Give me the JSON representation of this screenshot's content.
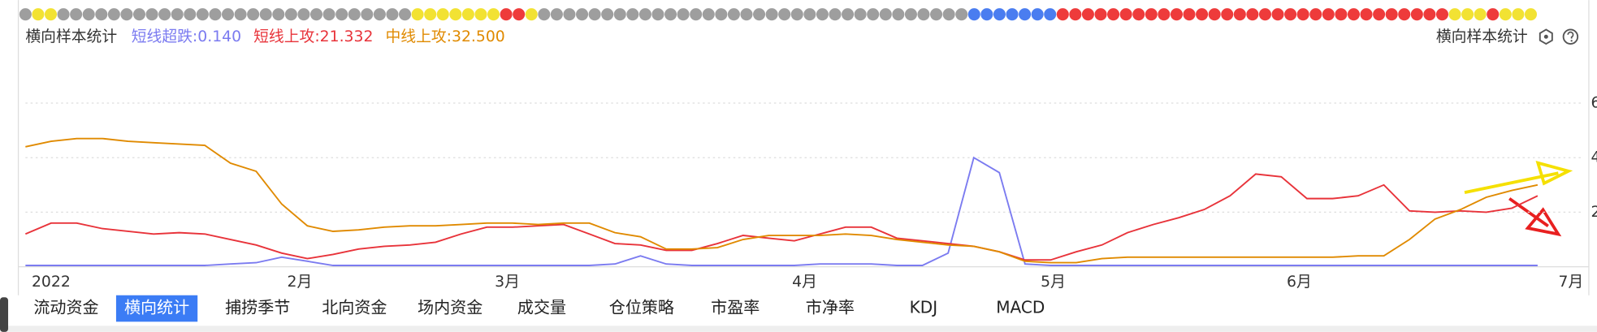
{
  "chart_data": {
    "type": "line",
    "title": "横向样本统计",
    "side_title": "横向样本统计",
    "status_dots": [
      [
        "#9e9e9e",
        1
      ],
      [
        "#f2e233",
        2
      ],
      [
        "#9e9e9e",
        28
      ],
      [
        "#f2e233",
        7
      ],
      [
        "#ee3b3b",
        2
      ],
      [
        "#f2e233",
        1
      ],
      [
        "#9e9e9e",
        34
      ],
      [
        "#4a7df0",
        7
      ],
      [
        "#ee3b3b",
        31
      ],
      [
        "#f2e233",
        3
      ],
      [
        "#ee3b3b",
        1
      ],
      [
        "#f2e233",
        3
      ]
    ],
    "series": [
      {
        "label": "短线超跌:0.140",
        "color": "#7b7bf0",
        "values": [
          0.05,
          0.05,
          0.05,
          0.05,
          0.05,
          0.05,
          0.05,
          0.05,
          0.1,
          0.15,
          0.35,
          0.2,
          0.05,
          0.05,
          0.05,
          0.05,
          0.05,
          0.05,
          0.05,
          0.05,
          0.05,
          0.05,
          0.05,
          0.1,
          0.4,
          0.1,
          0.05,
          0.05,
          0.05,
          0.05,
          0.05,
          0.1,
          0.1,
          0.1,
          0.05,
          0.05,
          0.5,
          4.0,
          3.45,
          0.1,
          0.05,
          0.05,
          0.05,
          0.05,
          0.05,
          0.05,
          0.05,
          0.05,
          0.05,
          0.05,
          0.05,
          0.05,
          0.05,
          0.05,
          0.05,
          0.05,
          0.05,
          0.05,
          0.05,
          0.05
        ]
      },
      {
        "label": "短线上攻:21.332",
        "color": "#e8333a",
        "values": [
          1.2,
          1.6,
          1.6,
          1.4,
          1.3,
          1.2,
          1.25,
          1.2,
          1.0,
          0.8,
          0.5,
          0.3,
          0.45,
          0.65,
          0.75,
          0.8,
          0.9,
          1.2,
          1.45,
          1.45,
          1.5,
          1.55,
          1.2,
          0.85,
          0.8,
          0.6,
          0.6,
          0.85,
          1.15,
          1.05,
          0.95,
          1.2,
          1.45,
          1.45,
          1.05,
          0.95,
          0.85,
          0.75,
          0.55,
          0.25,
          0.25,
          0.55,
          0.8,
          1.25,
          1.55,
          1.8,
          2.1,
          2.6,
          3.4,
          3.3,
          2.5,
          2.5,
          2.6,
          3.0,
          2.05,
          2.0,
          2.05,
          2.0,
          2.15,
          2.6
        ]
      },
      {
        "label": "中线上攻:32.500",
        "color": "#e08a00",
        "values": [
          4.4,
          4.6,
          4.7,
          4.7,
          4.6,
          4.55,
          4.5,
          4.45,
          3.8,
          3.5,
          2.3,
          1.5,
          1.3,
          1.35,
          1.45,
          1.5,
          1.5,
          1.55,
          1.6,
          1.6,
          1.55,
          1.6,
          1.6,
          1.25,
          1.1,
          0.65,
          0.65,
          0.7,
          1.0,
          1.15,
          1.15,
          1.15,
          1.2,
          1.15,
          1.0,
          0.9,
          0.8,
          0.75,
          0.55,
          0.2,
          0.15,
          0.15,
          0.3,
          0.35,
          0.35,
          0.35,
          0.35,
          0.35,
          0.35,
          0.35,
          0.35,
          0.35,
          0.4,
          0.4,
          1.0,
          1.75,
          2.1,
          2.55,
          2.8,
          3.0
        ]
      }
    ],
    "xlim": [
      0,
      61
    ],
    "xticks": [
      {
        "value": 1.0,
        "label": "2022"
      },
      {
        "value": 10.7,
        "label": "2月"
      },
      {
        "value": 18.8,
        "label": "3月"
      },
      {
        "value": 30.4,
        "label": "4月"
      },
      {
        "value": 40.1,
        "label": "5月"
      },
      {
        "value": 49.7,
        "label": "6月"
      },
      {
        "value": 60.3,
        "label": "7月"
      }
    ],
    "ylim": [
      0,
      7.5
    ],
    "yticks": [
      2,
      4,
      6
    ],
    "grid": true
  },
  "tabs": {
    "items": [
      "流动资金",
      "横向统计",
      "捕捞季节",
      "北向资金",
      "场内资金",
      "成交量",
      "仓位策略",
      "市盈率",
      "市净率",
      "KDJ",
      "MACD"
    ],
    "active": 1
  }
}
